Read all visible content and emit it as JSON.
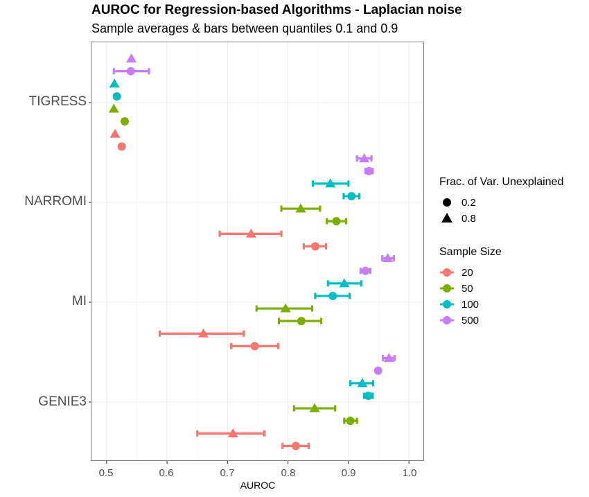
{
  "chart_data": {
    "type": "scatter",
    "title": "AUROC for Regression-based Algorithms - Laplacian noise",
    "subtitle": "Sample averages & bars between quantiles 0.1 and 0.9",
    "xlabel": "AUROC",
    "ylabel": "",
    "xlim": [
      0.475,
      1.025
    ],
    "x_ticks": [
      "0.5",
      "0.6",
      "0.7",
      "0.8",
      "0.9",
      "1.0"
    ],
    "categories": [
      "TIGRESS",
      "NARROMI",
      "MI",
      "GENIE3"
    ],
    "grid": true,
    "legend_position": "right",
    "legend": {
      "shape_title": "Frac. of Var. Unexplained",
      "shape_entries": [
        {
          "label": "0.2",
          "shape": "circle"
        },
        {
          "label": "0.8",
          "shape": "triangle"
        }
      ],
      "color_title": "Sample Size",
      "color_entries": [
        {
          "label": "20",
          "color": "#F8766D"
        },
        {
          "label": "50",
          "color": "#7CAE00"
        },
        {
          "label": "100",
          "color": "#00BFC4"
        },
        {
          "label": "500",
          "color": "#C77CFF"
        }
      ]
    },
    "points": [
      {
        "algorithm": "TIGRESS",
        "sample_size": "20",
        "frac": "0.2",
        "mean": 0.525,
        "q10": null,
        "q90": null
      },
      {
        "algorithm": "TIGRESS",
        "sample_size": "20",
        "frac": "0.8",
        "mean": 0.514,
        "q10": null,
        "q90": null
      },
      {
        "algorithm": "TIGRESS",
        "sample_size": "50",
        "frac": "0.2",
        "mean": 0.53,
        "q10": null,
        "q90": null
      },
      {
        "algorithm": "TIGRESS",
        "sample_size": "50",
        "frac": "0.8",
        "mean": 0.512,
        "q10": null,
        "q90": null
      },
      {
        "algorithm": "TIGRESS",
        "sample_size": "100",
        "frac": "0.2",
        "mean": 0.517,
        "q10": null,
        "q90": null
      },
      {
        "algorithm": "TIGRESS",
        "sample_size": "100",
        "frac": "0.8",
        "mean": 0.513,
        "q10": null,
        "q90": null
      },
      {
        "algorithm": "TIGRESS",
        "sample_size": "500",
        "frac": "0.2",
        "mean": 0.54,
        "q10": 0.512,
        "q90": 0.57
      },
      {
        "algorithm": "TIGRESS",
        "sample_size": "500",
        "frac": "0.8",
        "mean": 0.541,
        "q10": null,
        "q90": null
      },
      {
        "algorithm": "NARROMI",
        "sample_size": "20",
        "frac": "0.2",
        "mean": 0.845,
        "q10": 0.826,
        "q90": 0.863
      },
      {
        "algorithm": "NARROMI",
        "sample_size": "20",
        "frac": "0.8",
        "mean": 0.739,
        "q10": 0.687,
        "q90": 0.789
      },
      {
        "algorithm": "NARROMI",
        "sample_size": "50",
        "frac": "0.2",
        "mean": 0.88,
        "q10": 0.864,
        "q90": 0.896
      },
      {
        "algorithm": "NARROMI",
        "sample_size": "50",
        "frac": "0.8",
        "mean": 0.821,
        "q10": 0.789,
        "q90": 0.853
      },
      {
        "algorithm": "NARROMI",
        "sample_size": "100",
        "frac": "0.2",
        "mean": 0.905,
        "q10": 0.892,
        "q90": 0.918
      },
      {
        "algorithm": "NARROMI",
        "sample_size": "100",
        "frac": "0.8",
        "mean": 0.87,
        "q10": 0.841,
        "q90": 0.9
      },
      {
        "algorithm": "NARROMI",
        "sample_size": "500",
        "frac": "0.2",
        "mean": 0.934,
        "q10": 0.928,
        "q90": 0.94
      },
      {
        "algorithm": "NARROMI",
        "sample_size": "500",
        "frac": "0.8",
        "mean": 0.926,
        "q10": 0.914,
        "q90": 0.938
      },
      {
        "algorithm": "MI",
        "sample_size": "20",
        "frac": "0.2",
        "mean": 0.745,
        "q10": 0.706,
        "q90": 0.784
      },
      {
        "algorithm": "MI",
        "sample_size": "20",
        "frac": "0.8",
        "mean": 0.66,
        "q10": 0.588,
        "q90": 0.727
      },
      {
        "algorithm": "MI",
        "sample_size": "50",
        "frac": "0.2",
        "mean": 0.822,
        "q10": 0.785,
        "q90": 0.855
      },
      {
        "algorithm": "MI",
        "sample_size": "50",
        "frac": "0.8",
        "mean": 0.796,
        "q10": 0.748,
        "q90": 0.84
      },
      {
        "algorithm": "MI",
        "sample_size": "100",
        "frac": "0.2",
        "mean": 0.874,
        "q10": 0.845,
        "q90": 0.902
      },
      {
        "algorithm": "MI",
        "sample_size": "100",
        "frac": "0.8",
        "mean": 0.893,
        "q10": 0.866,
        "q90": 0.921
      },
      {
        "algorithm": "MI",
        "sample_size": "500",
        "frac": "0.2",
        "mean": 0.928,
        "q10": 0.92,
        "q90": 0.936
      },
      {
        "algorithm": "MI",
        "sample_size": "500",
        "frac": "0.8",
        "mean": 0.965,
        "q10": 0.956,
        "q90": 0.975
      },
      {
        "algorithm": "GENIE3",
        "sample_size": "20",
        "frac": "0.2",
        "mean": 0.813,
        "q10": 0.791,
        "q90": 0.834
      },
      {
        "algorithm": "GENIE3",
        "sample_size": "20",
        "frac": "0.8",
        "mean": 0.709,
        "q10": 0.65,
        "q90": 0.761
      },
      {
        "algorithm": "GENIE3",
        "sample_size": "50",
        "frac": "0.2",
        "mean": 0.903,
        "q10": 0.893,
        "q90": 0.914
      },
      {
        "algorithm": "GENIE3",
        "sample_size": "50",
        "frac": "0.8",
        "mean": 0.844,
        "q10": 0.81,
        "q90": 0.878
      },
      {
        "algorithm": "GENIE3",
        "sample_size": "100",
        "frac": "0.2",
        "mean": 0.933,
        "q10": 0.926,
        "q90": 0.94
      },
      {
        "algorithm": "GENIE3",
        "sample_size": "100",
        "frac": "0.8",
        "mean": 0.923,
        "q10": 0.903,
        "q90": 0.941
      },
      {
        "algorithm": "GENIE3",
        "sample_size": "500",
        "frac": "0.2",
        "mean": 0.949,
        "q10": null,
        "q90": null
      },
      {
        "algorithm": "GENIE3",
        "sample_size": "500",
        "frac": "0.8",
        "mean": 0.967,
        "q10": 0.957,
        "q90": 0.976
      }
    ]
  }
}
